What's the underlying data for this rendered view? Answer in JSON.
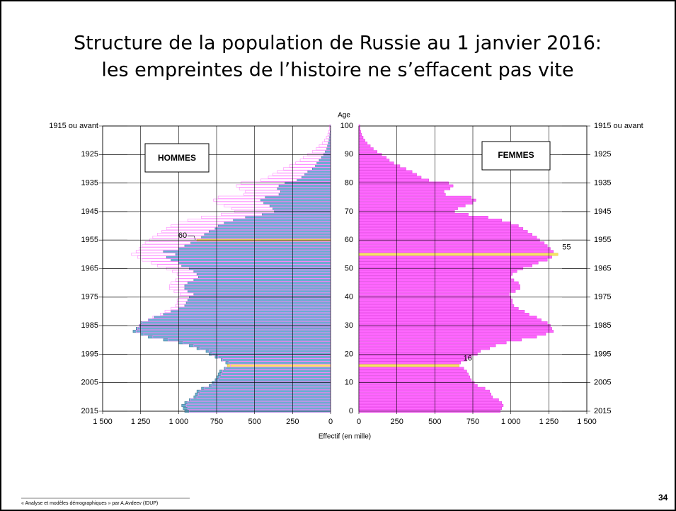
{
  "title": [
    "Structure de la population de Russie au 1 janvier 2016:",
    "les empreintes de l’histoire ne s’effacent pas vite"
  ],
  "footer": "« Analyse et modèles démographiques » par A.Avdeev (IDUP)",
  "page_number": "34",
  "chart_data": {
    "type": "pyramid",
    "y_label": "Age",
    "x_label": "Effectif  (en mille)",
    "categories": [
      0,
      1,
      2,
      3,
      4,
      5,
      6,
      7,
      8,
      9,
      10,
      11,
      12,
      13,
      14,
      15,
      16,
      17,
      18,
      19,
      20,
      21,
      22,
      23,
      24,
      25,
      26,
      27,
      28,
      29,
      30,
      31,
      32,
      33,
      34,
      35,
      36,
      37,
      38,
      39,
      40,
      41,
      42,
      43,
      44,
      45,
      46,
      47,
      48,
      49,
      50,
      51,
      52,
      53,
      54,
      55,
      56,
      57,
      58,
      59,
      60,
      61,
      62,
      63,
      64,
      65,
      66,
      67,
      68,
      69,
      70,
      71,
      72,
      73,
      74,
      75,
      76,
      77,
      78,
      79,
      80,
      81,
      82,
      83,
      84,
      85,
      86,
      87,
      88,
      89,
      90,
      91,
      92,
      93,
      94,
      95,
      96,
      97,
      98,
      99,
      100
    ],
    "series": [
      {
        "name": "HOMMES",
        "color": "#6aaed0",
        "stroke": "#3a6f88",
        "values": [
          960,
          970,
          980,
          960,
          930,
          900,
          890,
          880,
          850,
          800,
          780,
          760,
          750,
          740,
          730,
          700,
          680,
          690,
          720,
          760,
          800,
          820,
          880,
          930,
          1000,
          1100,
          1200,
          1250,
          1300,
          1280,
          1260,
          1250,
          1200,
          1160,
          1100,
          1050,
          1000,
          960,
          950,
          940,
          930,
          900,
          940,
          960,
          960,
          940,
          900,
          870,
          880,
          900,
          930,
          980,
          1000,
          1050,
          1080,
          1020,
          1100,
          1000,
          960,
          920,
          880,
          850,
          830,
          800,
          760,
          740,
          700,
          640,
          560,
          450,
          370,
          380,
          400,
          440,
          460,
          430,
          340,
          330,
          350,
          340,
          300,
          220,
          190,
          170,
          150,
          120,
          100,
          90,
          75,
          60,
          45,
          35,
          25,
          20,
          15,
          10,
          7,
          5,
          3,
          2,
          2
        ]
      },
      {
        "name": "FEMMES",
        "color": "#ff66ff",
        "stroke": "#e040e0",
        "values": [
          930,
          940,
          950,
          940,
          920,
          880,
          870,
          860,
          830,
          780,
          760,
          740,
          730,
          720,
          710,
          690,
          660,
          670,
          710,
          740,
          780,
          800,
          860,
          900,
          970,
          1070,
          1170,
          1230,
          1280,
          1270,
          1260,
          1240,
          1200,
          1170,
          1120,
          1090,
          1050,
          1020,
          1010,
          1010,
          1000,
          990,
          1030,
          1060,
          1060,
          1050,
          1020,
          1000,
          1010,
          1040,
          1080,
          1140,
          1180,
          1240,
          1270,
          1310,
          1280,
          1260,
          1240,
          1220,
          1190,
          1170,
          1140,
          1110,
          1080,
          1050,
          1000,
          940,
          850,
          720,
          630,
          650,
          700,
          750,
          770,
          740,
          570,
          560,
          600,
          620,
          590,
          460,
          410,
          380,
          350,
          310,
          270,
          230,
          200,
          180,
          150,
          120,
          95,
          75,
          55,
          40,
          28,
          18,
          12,
          8,
          6
        ]
      }
    ],
    "highlights": [
      {
        "series": 0,
        "age": 60,
        "label": "60"
      },
      {
        "series": 0,
        "age": 16
      },
      {
        "series": 1,
        "age": 55,
        "label": "55"
      },
      {
        "series": 1,
        "age": 16,
        "label": "16"
      }
    ],
    "highlight_color": "#f5e663",
    "xlim": [
      0,
      1500
    ],
    "xticks": [
      0,
      250,
      500,
      750,
      {
        "value": 1000,
        "label": "1 000"
      },
      {
        "value": 1250,
        "label": "1 250"
      },
      {
        "value": 1500,
        "label": "1 500"
      }
    ],
    "ylim": [
      0,
      100
    ],
    "yticks": [
      0,
      10,
      20,
      30,
      40,
      50,
      60,
      70,
      80,
      90,
      100
    ],
    "y2ticks": [
      {
        "value": 0,
        "label": "2015"
      },
      {
        "value": 10,
        "label": "2005"
      },
      {
        "value": 20,
        "label": "1995"
      },
      {
        "value": 30,
        "label": "1985"
      },
      {
        "value": 40,
        "label": "1975"
      },
      {
        "value": 50,
        "label": "1965"
      },
      {
        "value": 60,
        "label": "1955"
      },
      {
        "value": 70,
        "label": "1945"
      },
      {
        "value": 80,
        "label": "1935"
      },
      {
        "value": 90,
        "label": "1925"
      },
      {
        "value": 100,
        "label": "1915 ou avant"
      }
    ],
    "grid": true
  }
}
